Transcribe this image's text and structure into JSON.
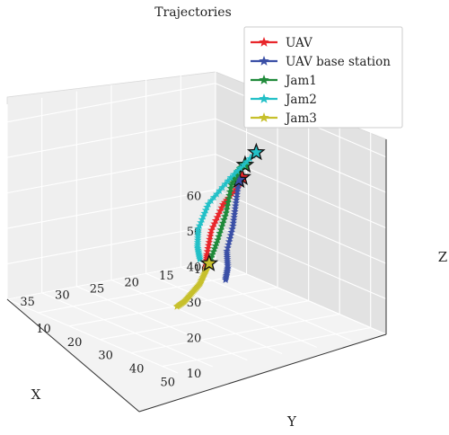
{
  "chart_data": {
    "type": "line",
    "projection": "3d",
    "title": "Trajectories",
    "xlabel": "X",
    "ylabel": "Y",
    "zlabel": "Z",
    "xlim": [
      10,
      40
    ],
    "ylim": [
      0,
      55
    ],
    "zlim": [
      10,
      65
    ],
    "x_ticks": [
      "10",
      "15",
      "20",
      "25",
      "30",
      "35",
      "40"
    ],
    "y_ticks": [
      "10",
      "20",
      "30",
      "40",
      "50"
    ],
    "z_ticks": [
      "10",
      "20",
      "30",
      "40",
      "50",
      "60"
    ],
    "grid": true,
    "legend_position": "top-right",
    "series": [
      {
        "name": "UAV",
        "color": "#e8262b",
        "points": [
          [
            16,
            22,
            44
          ],
          [
            18,
            25,
            43
          ],
          [
            21,
            27,
            40
          ],
          [
            24,
            30,
            35
          ],
          [
            26,
            33,
            30
          ],
          [
            27,
            35,
            27
          ]
        ]
      },
      {
        "name": "UAV base station",
        "color": "#3a4fa6",
        "points": [
          [
            12,
            12,
            38
          ],
          [
            16,
            20,
            36
          ],
          [
            20,
            28,
            34
          ],
          [
            24,
            35,
            31
          ],
          [
            27,
            42,
            30
          ],
          [
            30,
            48,
            30
          ]
        ]
      },
      {
        "name": "Jam1",
        "color": "#1f8a3a",
        "points": [
          [
            12,
            14,
            43
          ],
          [
            15,
            19,
            45
          ],
          [
            18,
            23,
            43
          ],
          [
            21,
            28,
            38
          ],
          [
            24,
            32,
            33
          ],
          [
            27,
            36,
            29
          ]
        ]
      },
      {
        "name": "Jam2",
        "color": "#22c0c7",
        "points": [
          [
            22,
            40,
            60
          ],
          [
            23,
            34,
            51
          ],
          [
            24,
            29,
            42
          ],
          [
            25,
            28,
            35
          ],
          [
            26,
            30,
            31
          ],
          [
            27,
            33,
            29
          ]
        ]
      },
      {
        "name": "Jam3",
        "color": "#c7c02c",
        "points": [
          [
            27,
            36,
            29
          ],
          [
            29,
            39,
            28
          ],
          [
            31,
            42,
            27
          ],
          [
            33,
            44,
            26
          ],
          [
            35,
            46,
            25
          ],
          [
            37,
            48,
            25
          ]
        ]
      }
    ]
  }
}
